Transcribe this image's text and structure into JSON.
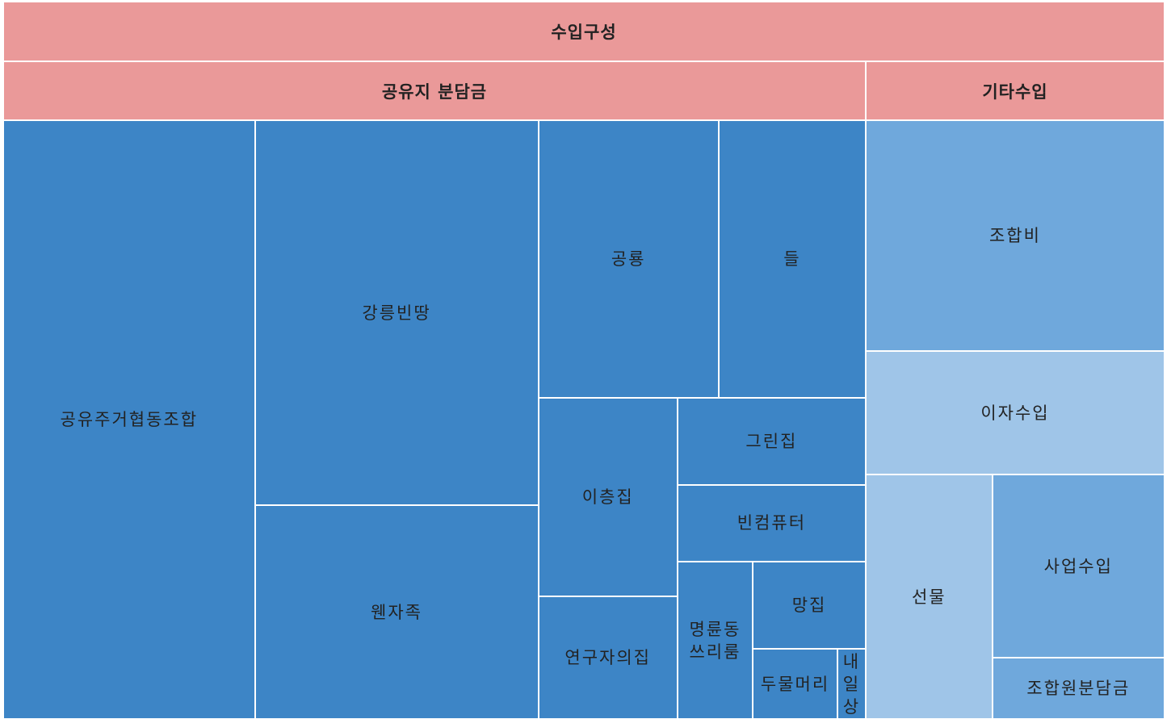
{
  "chart_data": {
    "type": "treemap",
    "title": "수입구성",
    "header_color": "#ea9999",
    "groups": [
      {
        "name": "공유지 분담금",
        "children": [
          {
            "name": "공유주거협동조합",
            "value": 229,
            "color": "#3d85c6"
          },
          {
            "name": "강릉빈땅",
            "value": 166,
            "color": "#3d85c6"
          },
          {
            "name": "웬자족",
            "value": 92,
            "color": "#3d85c6"
          },
          {
            "name": "공룡",
            "value": 76,
            "color": "#3d85c6"
          },
          {
            "name": "들",
            "value": 62,
            "color": "#3d85c6"
          },
          {
            "name": "이층집",
            "value": 42,
            "color": "#3d85c6"
          },
          {
            "name": "연구자의집",
            "value": 26,
            "color": "#3d85c6"
          },
          {
            "name": "그린집",
            "value": 25,
            "color": "#3d85c6"
          },
          {
            "name": "빈컴퓨터",
            "value": 22,
            "color": "#3d85c6"
          },
          {
            "name": "명륜동쓰리룸",
            "value": 18,
            "color": "#3d85c6"
          },
          {
            "name": "망집",
            "value": 15,
            "color": "#3d85c6"
          },
          {
            "name": "두물머리",
            "value": 9,
            "color": "#3d85c6"
          },
          {
            "name": "내일상",
            "value": 3,
            "color": "#3d85c6"
          }
        ]
      },
      {
        "name": "기타수입",
        "children": [
          {
            "name": "조합비",
            "value": 105,
            "color": "#6fa8dc"
          },
          {
            "name": "이자수입",
            "value": 56,
            "color": "#9fc5e8"
          },
          {
            "name": "선물",
            "value": 47,
            "color": "#9fc5e8"
          },
          {
            "name": "사업수입",
            "value": 48,
            "color": "#6fa8dc"
          },
          {
            "name": "조합원분담금",
            "value": 16,
            "color": "#6fa8dc"
          }
        ]
      }
    ]
  }
}
